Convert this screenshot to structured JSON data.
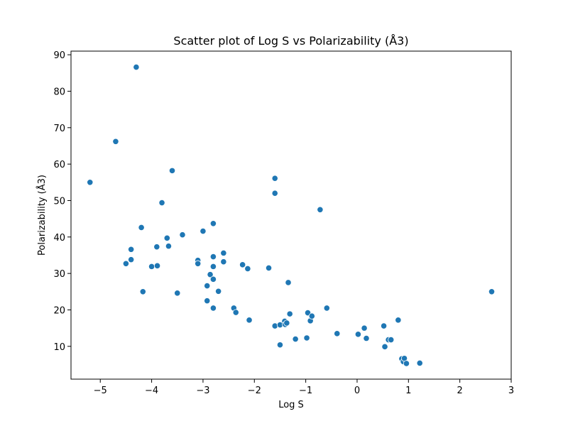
{
  "chart_data": {
    "type": "scatter",
    "title": "Scatter plot of Log S vs Polarizability (Å3)",
    "xlabel": "Log S",
    "ylabel": "Polarizability (Å3)",
    "xlim": [
      -5.57,
      3.0
    ],
    "ylim": [
      1.0,
      91.0
    ],
    "x_ticks": [
      -5,
      -4,
      -3,
      -2,
      -1,
      0,
      1,
      2,
      3
    ],
    "x_tick_labels": [
      "−5",
      "−4",
      "−3",
      "−2",
      "−1",
      "0",
      "1",
      "2",
      "3"
    ],
    "y_ticks": [
      10,
      20,
      30,
      40,
      50,
      60,
      70,
      80,
      90
    ],
    "y_tick_labels": [
      "10",
      "20",
      "30",
      "40",
      "50",
      "60",
      "70",
      "80",
      "90"
    ],
    "grid": false,
    "marker_color": "#1f77b4",
    "points": [
      {
        "x": -5.2,
        "y": 55.0
      },
      {
        "x": -4.7,
        "y": 66.2
      },
      {
        "x": -4.3,
        "y": 86.6
      },
      {
        "x": -4.5,
        "y": 32.7
      },
      {
        "x": -4.4,
        "y": 36.6
      },
      {
        "x": -4.4,
        "y": 33.8
      },
      {
        "x": -4.2,
        "y": 42.6
      },
      {
        "x": -4.17,
        "y": 25.0
      },
      {
        "x": -4.0,
        "y": 31.9
      },
      {
        "x": -3.9,
        "y": 37.3
      },
      {
        "x": -3.89,
        "y": 32.1
      },
      {
        "x": -3.8,
        "y": 49.4
      },
      {
        "x": -3.7,
        "y": 39.7
      },
      {
        "x": -3.67,
        "y": 37.5
      },
      {
        "x": -3.6,
        "y": 58.2
      },
      {
        "x": -3.5,
        "y": 24.6
      },
      {
        "x": -3.4,
        "y": 40.6
      },
      {
        "x": -3.1,
        "y": 33.6
      },
      {
        "x": -3.1,
        "y": 32.7
      },
      {
        "x": -3.0,
        "y": 41.6
      },
      {
        "x": -2.92,
        "y": 26.6
      },
      {
        "x": -2.92,
        "y": 22.5
      },
      {
        "x": -2.86,
        "y": 29.7
      },
      {
        "x": -2.8,
        "y": 43.7
      },
      {
        "x": -2.8,
        "y": 34.6
      },
      {
        "x": -2.8,
        "y": 31.9
      },
      {
        "x": -2.8,
        "y": 28.4
      },
      {
        "x": -2.8,
        "y": 20.5
      },
      {
        "x": -2.7,
        "y": 25.1
      },
      {
        "x": -2.6,
        "y": 35.6
      },
      {
        "x": -2.6,
        "y": 33.2
      },
      {
        "x": -2.4,
        "y": 20.5
      },
      {
        "x": -2.36,
        "y": 19.3
      },
      {
        "x": -2.23,
        "y": 32.4
      },
      {
        "x": -2.13,
        "y": 31.3
      },
      {
        "x": -2.1,
        "y": 17.2
      },
      {
        "x": -1.72,
        "y": 31.5
      },
      {
        "x": -1.6,
        "y": 56.1
      },
      {
        "x": -1.6,
        "y": 52.0
      },
      {
        "x": -1.6,
        "y": 15.6
      },
      {
        "x": -1.5,
        "y": 15.9
      },
      {
        "x": -1.5,
        "y": 10.4
      },
      {
        "x": -1.41,
        "y": 16.9
      },
      {
        "x": -1.4,
        "y": 16.0
      },
      {
        "x": -1.37,
        "y": 16.4
      },
      {
        "x": -1.34,
        "y": 27.5
      },
      {
        "x": -1.31,
        "y": 18.9
      },
      {
        "x": -1.2,
        "y": 12.0
      },
      {
        "x": -0.98,
        "y": 12.3
      },
      {
        "x": -0.96,
        "y": 19.2
      },
      {
        "x": -0.91,
        "y": 17.0
      },
      {
        "x": -0.88,
        "y": 18.3
      },
      {
        "x": -0.72,
        "y": 47.5
      },
      {
        "x": -0.59,
        "y": 20.5
      },
      {
        "x": -0.39,
        "y": 13.5
      },
      {
        "x": 0.02,
        "y": 13.3
      },
      {
        "x": 0.14,
        "y": 15.0
      },
      {
        "x": 0.18,
        "y": 12.2
      },
      {
        "x": 0.52,
        "y": 15.6
      },
      {
        "x": 0.54,
        "y": 9.9
      },
      {
        "x": 0.61,
        "y": 11.8
      },
      {
        "x": 0.66,
        "y": 11.8
      },
      {
        "x": 0.8,
        "y": 17.2
      },
      {
        "x": 0.87,
        "y": 6.6
      },
      {
        "x": 0.9,
        "y": 5.8
      },
      {
        "x": 0.92,
        "y": 6.7
      },
      {
        "x": 0.96,
        "y": 5.3
      },
      {
        "x": 1.22,
        "y": 5.4
      },
      {
        "x": 2.62,
        "y": 25.0
      }
    ]
  }
}
